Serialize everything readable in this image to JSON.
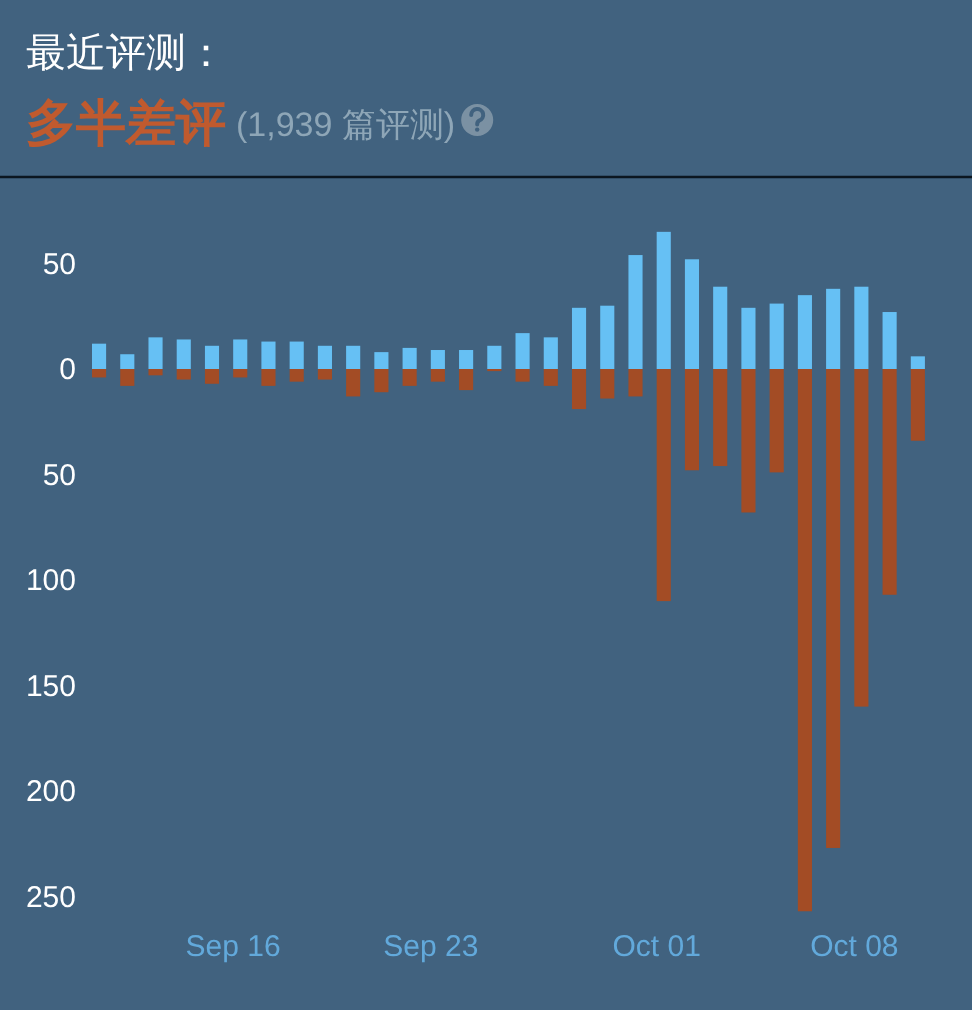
{
  "chart_data": {
    "type": "bar",
    "title": "最近评测：",
    "subtitle": "多半差评",
    "annotations": [
      "(1,939 篇评测)"
    ],
    "x": [
      "--09-11",
      "--09-12",
      "--09-13",
      "--09-14",
      "--09-15",
      "--09-16",
      "--09-17",
      "--09-18",
      "--09-19",
      "--09-20",
      "--09-21",
      "--09-22",
      "--09-23",
      "--09-24",
      "--09-25",
      "--09-26",
      "--09-27",
      "--09-28",
      "--09-29",
      "--09-30",
      "--10-01",
      "--10-02",
      "--10-03",
      "--10-04",
      "--10-05",
      "--10-06",
      "--10-07",
      "--10-08",
      "--10-09",
      "--10-10"
    ],
    "series": [
      {
        "color": "#66c0f4",
        "values": [
          12,
          7,
          15,
          14,
          11,
          14,
          13,
          13,
          11,
          11,
          8,
          10,
          9,
          9,
          11,
          17,
          15,
          29,
          30,
          54,
          65,
          52,
          39,
          29,
          31,
          35,
          38,
          39,
          27,
          6
        ]
      },
      {
        "color": "#a34c25",
        "values": [
          -4,
          -8,
          -3,
          -5,
          -7,
          -4,
          -8,
          -6,
          -5,
          -13,
          -11,
          -8,
          -6,
          -10,
          -1,
          -6,
          -8,
          -19,
          -14,
          -13,
          -110,
          -48,
          -46,
          -68,
          -49,
          -257,
          -227,
          -160,
          -107,
          -34
        ]
      }
    ],
    "stacked": true,
    "xlim": [
      "--09-11",
      "--10-10T12:00"
    ],
    "xticks": [
      {
        "value": "--09-16",
        "label": "Sep 16"
      },
      {
        "value": "--09-23",
        "label": "Sep 23"
      },
      {
        "value": "--10-01",
        "label": "Oct 01"
      },
      {
        "value": "--10-08",
        "label": "Oct 08"
      }
    ],
    "ylim": [
      -260,
      70
    ],
    "yticks": [
      50,
      0,
      {
        "value": -50,
        "label": "50"
      },
      {
        "value": -100,
        "label": "100"
      },
      {
        "value": -150,
        "label": "150"
      },
      {
        "value": -200,
        "label": "200"
      },
      {
        "value": -250,
        "label": "250"
      }
    ]
  }
}
